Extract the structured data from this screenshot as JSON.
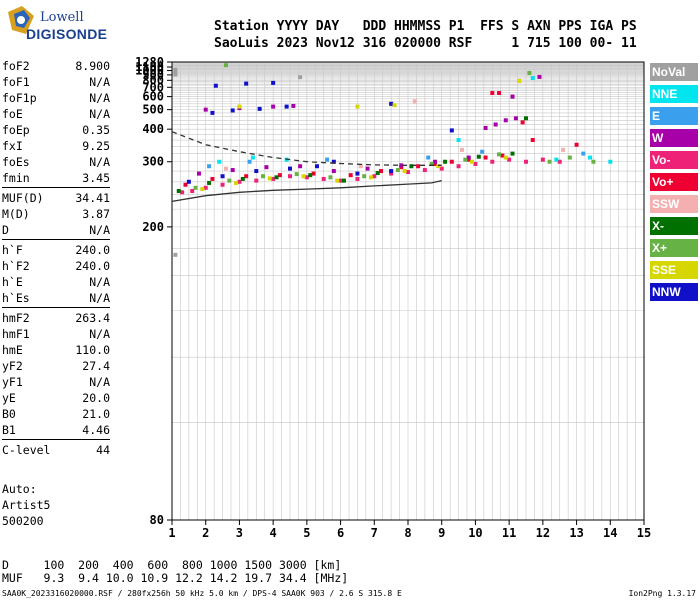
{
  "logo": {
    "line1": "Lowell",
    "line2": "DIGISONDE"
  },
  "header": {
    "line1": "Station YYYY DAY   DDD HHMMSS P1  FFS S AXN PPS IGA PS",
    "line2": "SaoLuis 2023 Nov12 316 020000 RSF     1 715 100 00- 11"
  },
  "params": {
    "group1": [
      {
        "name": "foF2",
        "value": "8.900"
      },
      {
        "name": "foF1",
        "value": "N/A"
      },
      {
        "name": "foF1p",
        "value": "N/A"
      },
      {
        "name": "foE",
        "value": "N/A"
      },
      {
        "name": "foEp",
        "value": "0.35"
      },
      {
        "name": "fxI",
        "value": "9.25"
      },
      {
        "name": "foEs",
        "value": "N/A"
      },
      {
        "name": "fmin",
        "value": "3.45"
      }
    ],
    "group2": [
      {
        "name": "MUF(D)",
        "value": "34.41"
      },
      {
        "name": "M(D)",
        "value": "3.87"
      },
      {
        "name": "D",
        "value": "N/A"
      }
    ],
    "group3": [
      {
        "name": "h`F",
        "value": "240.0"
      },
      {
        "name": "h`F2",
        "value": "240.0"
      },
      {
        "name": "h`E",
        "value": "N/A"
      },
      {
        "name": "h`Es",
        "value": "N/A"
      }
    ],
    "group4": [
      {
        "name": "hmF2",
        "value": "263.4"
      },
      {
        "name": "hmF1",
        "value": "N/A"
      },
      {
        "name": "hmE",
        "value": "110.0"
      },
      {
        "name": "yF2",
        "value": "27.4"
      },
      {
        "name": "yF1",
        "value": "N/A"
      },
      {
        "name": "yE",
        "value": "20.0"
      },
      {
        "name": "B0",
        "value": "21.0"
      },
      {
        "name": "B1",
        "value": "4.46"
      }
    ],
    "group5": [
      {
        "name": "C-level",
        "value": "44"
      }
    ]
  },
  "autoscale": {
    "line1": "Auto:",
    "line2": "Artist5",
    "line3": "500200"
  },
  "legend": [
    {
      "label": "NoVal",
      "color": "#a0a0a0"
    },
    {
      "label": "NNE",
      "color": "#00e5ee"
    },
    {
      "label": "E",
      "color": "#3aa0ee"
    },
    {
      "label": "W",
      "color": "#a800a8"
    },
    {
      "label": "Vo-",
      "color": "#ee2277"
    },
    {
      "label": "Vo+",
      "color": "#ee0033"
    },
    {
      "label": "SSW",
      "color": "#f4b0b0"
    },
    {
      "label": "X-",
      "color": "#007000"
    },
    {
      "label": "X+",
      "color": "#66b244"
    },
    {
      "label": "SSE",
      "color": "#d6d600"
    },
    {
      "label": "NNW",
      "color": "#1010c8"
    }
  ],
  "muf_table": {
    "d_line": "D     100  200  400  600  800 1000 1500 3000 [km]",
    "muf_line": "MUF   9.3  9.4 10.0 10.9 12.2 14.2 19.7 34.4 [MHz]"
  },
  "footer": {
    "left": "SAA0K_2023316020000.RSF / 280fx256h 50 kHz 5.0 km / DPS-4 SAA0K 903 / 2.6 S 315.8 E",
    "right": "Ion2Png 1.3.17"
  },
  "chart_data": {
    "type": "scatter",
    "xlim": [
      1,
      15
    ],
    "ylim": [
      80,
      1280
    ],
    "yscale": "reciprocal-like (ionogram virtual height)",
    "x_ticks": [
      1,
      2,
      3,
      4,
      5,
      6,
      7,
      8,
      9,
      10,
      11,
      12,
      13,
      14,
      15
    ],
    "y_ticks": [
      80,
      200,
      300,
      400,
      500,
      600,
      700,
      800,
      900,
      1000,
      1100,
      1280
    ],
    "grid": true,
    "legend_placement": "right",
    "series": [
      {
        "legend_index": 4,
        "points": [
          [
            1.3,
            243
          ],
          [
            1.6,
            245
          ],
          [
            2.0,
            250
          ],
          [
            2.5,
            255
          ],
          [
            3.0,
            260
          ],
          [
            3.5,
            262
          ],
          [
            4.0,
            265
          ],
          [
            4.5,
            270
          ],
          [
            5.0,
            268
          ],
          [
            5.5,
            265
          ],
          [
            6.0,
            262
          ],
          [
            6.5,
            265
          ],
          [
            7.0,
            270
          ],
          [
            7.5,
            275
          ],
          [
            8.0,
            278
          ],
          [
            8.5,
            282
          ],
          [
            9.0,
            285
          ],
          [
            9.5,
            290
          ],
          [
            10.0,
            295
          ],
          [
            10.5,
            300
          ],
          [
            11.0,
            305
          ],
          [
            11.5,
            300
          ],
          [
            12.0,
            305
          ],
          [
            12.5,
            300
          ]
        ]
      },
      {
        "legend_index": 5,
        "points": [
          [
            1.4,
            255
          ],
          [
            2.2,
            265
          ],
          [
            3.2,
            270
          ],
          [
            4.2,
            272
          ],
          [
            5.2,
            275
          ],
          [
            6.3,
            272
          ],
          [
            7.2,
            280
          ],
          [
            7.8,
            288
          ],
          [
            8.3,
            290
          ],
          [
            8.8,
            295
          ],
          [
            9.3,
            300
          ],
          [
            9.8,
            305
          ],
          [
            10.3,
            310
          ],
          [
            10.8,
            315
          ],
          [
            10.5,
            635
          ],
          [
            10.7,
            635
          ],
          [
            11.4,
            430
          ],
          [
            11.7,
            360
          ],
          [
            13.0,
            345
          ]
        ]
      },
      {
        "legend_index": 3,
        "points": [
          [
            1.8,
            275
          ],
          [
            2.8,
            282
          ],
          [
            3.8,
            288
          ],
          [
            4.8,
            290
          ],
          [
            5.8,
            280
          ],
          [
            6.8,
            285
          ],
          [
            7.8,
            292
          ],
          [
            8.8,
            300
          ],
          [
            9.8,
            310
          ],
          [
            10.3,
            405
          ],
          [
            10.6,
            420
          ],
          [
            10.9,
            440
          ],
          [
            11.2,
            450
          ],
          [
            2.0,
            500
          ],
          [
            3.0,
            510
          ],
          [
            4.0,
            520
          ],
          [
            4.6,
            525
          ],
          [
            11.1,
            600
          ],
          [
            11.9,
            860
          ]
        ]
      },
      {
        "legend_index": 10,
        "points": [
          [
            1.5,
            260
          ],
          [
            2.5,
            270
          ],
          [
            3.5,
            280
          ],
          [
            4.5,
            285
          ],
          [
            5.3,
            290
          ],
          [
            5.8,
            300
          ],
          [
            6.5,
            275
          ],
          [
            7.5,
            280
          ],
          [
            2.2,
            480
          ],
          [
            2.8,
            495
          ],
          [
            3.6,
            505
          ],
          [
            4.4,
            520
          ],
          [
            2.3,
            720
          ],
          [
            3.2,
            750
          ],
          [
            4.0,
            760
          ],
          [
            7.5,
            540
          ],
          [
            9.3,
            395
          ]
        ]
      },
      {
        "legend_index": 7,
        "points": [
          [
            1.2,
            245
          ],
          [
            2.1,
            258
          ],
          [
            3.1,
            265
          ],
          [
            4.1,
            268
          ],
          [
            5.1,
            272
          ],
          [
            6.1,
            262
          ],
          [
            7.1,
            276
          ],
          [
            8.1,
            290
          ],
          [
            9.1,
            300
          ],
          [
            10.1,
            312
          ],
          [
            11.1,
            320
          ],
          [
            11.5,
            450
          ]
        ]
      },
      {
        "legend_index": 8,
        "points": [
          [
            1.7,
            250
          ],
          [
            2.7,
            262
          ],
          [
            3.7,
            270
          ],
          [
            4.7,
            274
          ],
          [
            5.7,
            268
          ],
          [
            6.7,
            270
          ],
          [
            7.7,
            282
          ],
          [
            8.7,
            295
          ],
          [
            9.7,
            305
          ],
          [
            10.7,
            318
          ],
          [
            12.2,
            300
          ],
          [
            12.8,
            310
          ],
          [
            13.5,
            300
          ],
          [
            11.6,
            940
          ],
          [
            2.6,
            1160
          ]
        ]
      },
      {
        "legend_index": 9,
        "points": [
          [
            1.9,
            248
          ],
          [
            2.9,
            258
          ],
          [
            3.9,
            266
          ],
          [
            4.9,
            270
          ],
          [
            5.9,
            262
          ],
          [
            6.9,
            268
          ],
          [
            7.9,
            280
          ],
          [
            8.9,
            290
          ],
          [
            9.9,
            300
          ],
          [
            10.9,
            310
          ],
          [
            11.3,
            790
          ],
          [
            3.0,
            520
          ],
          [
            6.5,
            520
          ],
          [
            7.6,
            530
          ]
        ]
      },
      {
        "legend_index": 1,
        "points": [
          [
            2.4,
            300
          ],
          [
            3.4,
            310
          ],
          [
            4.4,
            305
          ],
          [
            9.5,
            360
          ],
          [
            11.7,
            840
          ],
          [
            12.4,
            305
          ],
          [
            13.4,
            310
          ],
          [
            14.0,
            300
          ]
        ]
      },
      {
        "legend_index": 2,
        "points": [
          [
            2.1,
            290
          ],
          [
            3.3,
            300
          ],
          [
            5.6,
            305
          ],
          [
            8.6,
            310
          ],
          [
            10.2,
            325
          ],
          [
            13.2,
            320
          ]
        ]
      },
      {
        "legend_index": 6,
        "points": [
          [
            2.6,
            285
          ],
          [
            6.6,
            290
          ],
          [
            9.6,
            330
          ],
          [
            12.6,
            330
          ],
          [
            8.2,
            560
          ]
        ]
      },
      {
        "legend_index": 0,
        "points": [
          [
            1.1,
            1020
          ],
          [
            1.1,
            950
          ],
          [
            1.1,
            910
          ],
          [
            1.1,
            175
          ],
          [
            4.8,
            855
          ]
        ]
      }
    ],
    "curves": [
      {
        "style": "dashed",
        "points": [
          [
            1.0,
            390
          ],
          [
            2.0,
            345
          ],
          [
            3.0,
            325
          ],
          [
            4.0,
            310
          ],
          [
            5.0,
            300
          ],
          [
            6.0,
            296
          ],
          [
            7.0,
            293
          ],
          [
            8.0,
            292
          ],
          [
            9.0,
            292
          ]
        ]
      },
      {
        "style": "solid",
        "points": [
          [
            1.0,
            230
          ],
          [
            2.0,
            238
          ],
          [
            3.0,
            243
          ],
          [
            4.0,
            246
          ],
          [
            5.0,
            248
          ],
          [
            6.0,
            250
          ],
          [
            7.0,
            253
          ],
          [
            8.0,
            256
          ],
          [
            8.7,
            258
          ],
          [
            9.0,
            262
          ]
        ]
      }
    ]
  }
}
